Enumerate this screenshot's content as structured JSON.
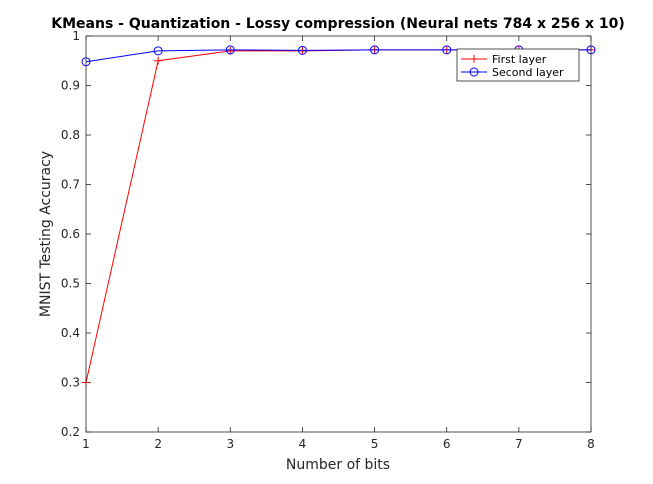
{
  "chart_data": {
    "type": "line",
    "title": "KMeans - Quantization - Lossy compression (Neural nets 784 x 256 x 10)",
    "xlabel": "Number of bits",
    "ylabel": "MNIST Testing Accuracy",
    "xlim": [
      1,
      8
    ],
    "ylim": [
      0.2,
      1
    ],
    "xticks": [
      "1",
      "2",
      "3",
      "4",
      "5",
      "6",
      "7",
      "8"
    ],
    "yticks": [
      "0.2",
      "0.3",
      "0.4",
      "0.5",
      "0.6",
      "0.7",
      "0.8",
      "0.9",
      "1"
    ],
    "grid": false,
    "legend_position": "top-right",
    "x": [
      1,
      2,
      3,
      4,
      5,
      6,
      7,
      8
    ],
    "series": [
      {
        "name": "First layer",
        "values": [
          0.3,
          0.95,
          0.97,
          0.97,
          0.972,
          0.972,
          0.972,
          0.972
        ],
        "color": "#ff0000",
        "marker": "plus"
      },
      {
        "name": "Second layer",
        "values": [
          0.948,
          0.97,
          0.972,
          0.971,
          0.972,
          0.972,
          0.972,
          0.972
        ],
        "color": "#0000ff",
        "marker": "circle"
      }
    ]
  }
}
